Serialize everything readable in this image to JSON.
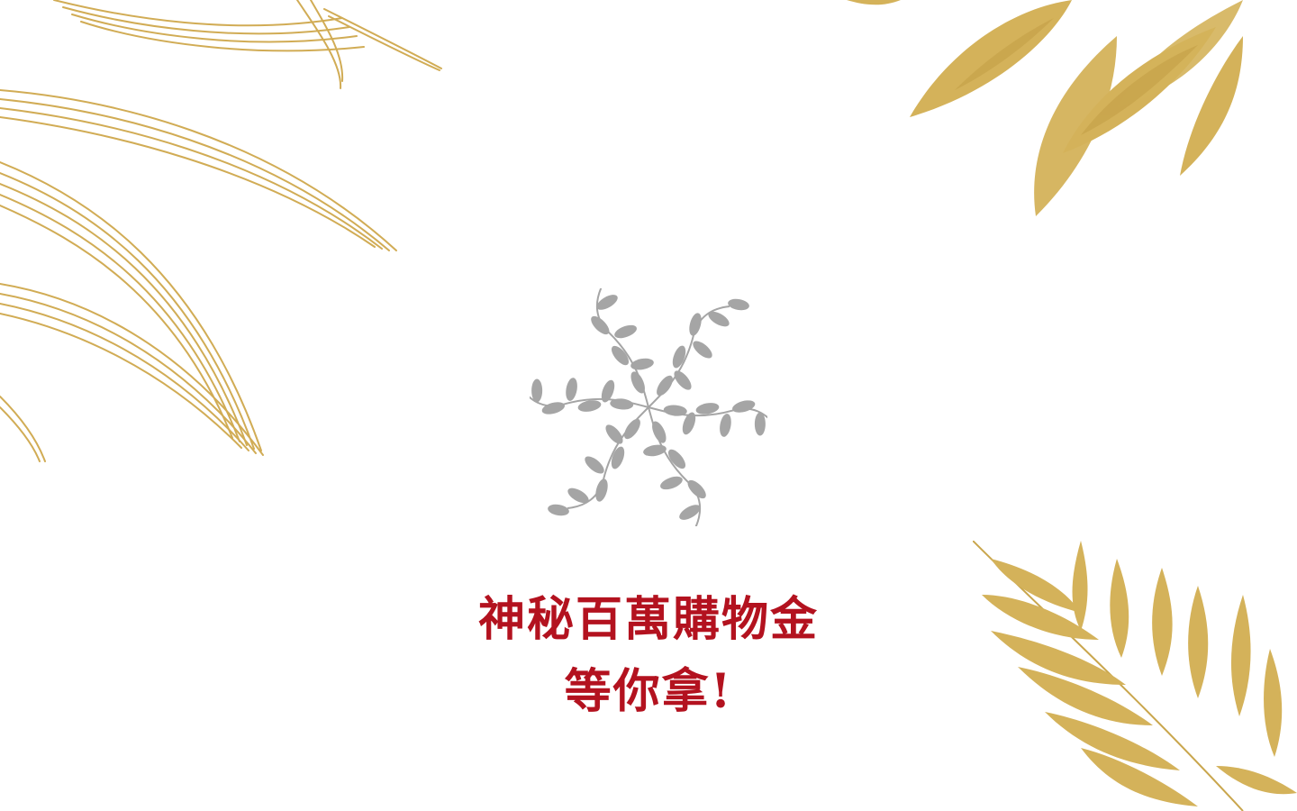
{
  "colors": {
    "background": "#ffffff",
    "gold": "#d4b25a",
    "gold_dark": "#b8923a",
    "emblem_gray": "#a5a5a5",
    "headline_red": "#b3121f"
  },
  "decor": {
    "top_left": "gold-leaves-icon",
    "top_right": "gold-leaves-icon",
    "bottom_right": "gold-fern-icon",
    "emblem": "leaf-mandala-logo"
  },
  "headline": {
    "line1": "神秘百萬購物金",
    "line2": "等你拿!"
  }
}
